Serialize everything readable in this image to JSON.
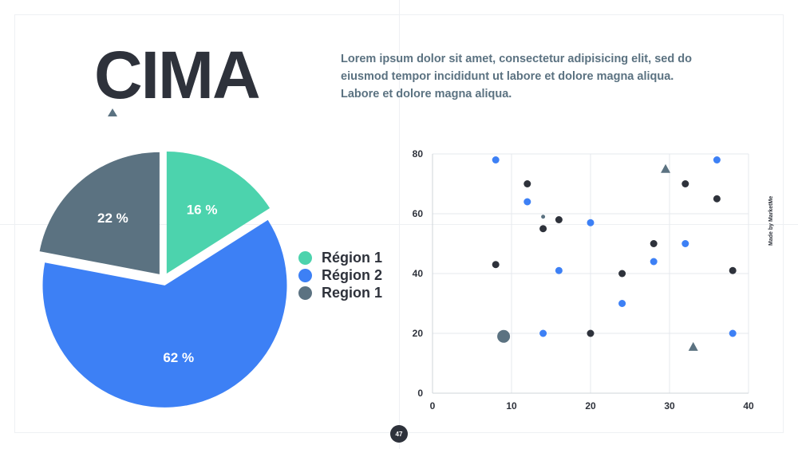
{
  "slide": {
    "title": "CIMA",
    "description": "Lorem ipsum dolor sit amet, consectetur adipisicing elit, sed do eiusmod tempor incididunt ut labore et dolore magna aliqua. Labore et dolore magna aliqua.",
    "made_by": "Made by MarketMe",
    "page_number": "47"
  },
  "colors": {
    "teal": "#4cd3ad",
    "blue": "#3d80f5",
    "slate": "#5b7281",
    "dark": "#2e323b"
  },
  "chart_data": [
    {
      "type": "pie",
      "slices": [
        {
          "label": "16 %",
          "value": 16,
          "color": "#4cd3ad"
        },
        {
          "label": "62 %",
          "value": 62,
          "color": "#3d80f5"
        },
        {
          "label": "22 %",
          "value": 22,
          "color": "#5b7281"
        }
      ],
      "legend": [
        {
          "name": "Région 1",
          "color": "#4cd3ad"
        },
        {
          "name": "Région 2",
          "color": "#3d80f5"
        },
        {
          "name": "Region 1",
          "color": "#5b7281"
        }
      ],
      "legend_position": "right"
    },
    {
      "type": "scatter",
      "xlim": [
        0,
        40
      ],
      "ylim": [
        0,
        80
      ],
      "xticks": [
        0,
        10,
        20,
        30,
        40
      ],
      "yticks": [
        0,
        20,
        40,
        60,
        80
      ],
      "grid": true,
      "series": [
        {
          "color": "#3d80f5",
          "points": [
            [
              8,
              78
            ],
            [
              12,
              64
            ],
            [
              16,
              41
            ],
            [
              14,
              20
            ],
            [
              20,
              57
            ],
            [
              24,
              30
            ],
            [
              28,
              44
            ],
            [
              32,
              50
            ],
            [
              36,
              78
            ],
            [
              38,
              20
            ]
          ]
        },
        {
          "color": "#2e323b",
          "points": [
            [
              8,
              43
            ],
            [
              12,
              70
            ],
            [
              14,
              55
            ],
            [
              16,
              58
            ],
            [
              20,
              20
            ],
            [
              24,
              40
            ],
            [
              28,
              50
            ],
            [
              32,
              70
            ],
            [
              36,
              65
            ],
            [
              38,
              41
            ]
          ]
        },
        {
          "color": "#5b7281",
          "marker": "circle-large",
          "points": [
            [
              9,
              19
            ]
          ]
        },
        {
          "color": "#5b7281",
          "marker": "circle-small",
          "points": [
            [
              14,
              59
            ]
          ]
        },
        {
          "color": "#5b7281",
          "marker": "triangle",
          "points": [
            [
              29.5,
              75
            ],
            [
              33,
              15.5
            ]
          ]
        }
      ]
    }
  ]
}
